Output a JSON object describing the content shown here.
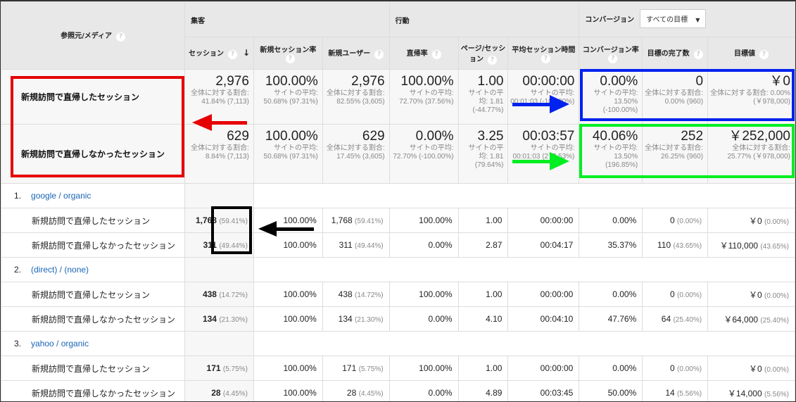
{
  "header": {
    "dimension": "参照元/メディア",
    "groups": {
      "acquisition": "集客",
      "behavior": "行動",
      "conversion": "コンバージョン"
    },
    "goal_select": "すべての目標",
    "columns": [
      "セッション",
      "新規セッション率",
      "新規ユーザー",
      "直帰率",
      "ページ/セッション",
      "平均セッション時間",
      "コンバージョン率",
      "目標の完了数",
      "目標値"
    ],
    "help": "?"
  },
  "summary": [
    {
      "label": "新規訪問で直帰したセッション",
      "cells": [
        {
          "v": "2,976",
          "s": "全体に対する割合: 41.84% (7,113)"
        },
        {
          "v": "100.00%",
          "s": "サイトの平均: 50.68% (97.31%)"
        },
        {
          "v": "2,976",
          "s": "全体に対する割合: 82.55% (3,605)"
        },
        {
          "v": "100.00%",
          "s": "サイトの平均: 72.70% (37.56%)"
        },
        {
          "v": "1.00",
          "s": "サイトの平均: 1.81 (-44.77%)"
        },
        {
          "v": "00:00:00",
          "s": "サイトの平均: 00:01:03 (-100.00%)"
        },
        {
          "v": "0.00%",
          "s": "サイトの平均: 13.50% (-100.00%)"
        },
        {
          "v": "0",
          "s": "全体に対する割合: 0.00% (960)"
        },
        {
          "v": "￥0",
          "s": "全体に対する割合: 0.00% (￥978,000)"
        }
      ]
    },
    {
      "label": "新規訪問で直帰しなかったセッション",
      "cells": [
        {
          "v": "629",
          "s": "全体に対する割合: 8.84% (7,113)"
        },
        {
          "v": "100.00%",
          "s": "サイトの平均: 50.68% (97.31%)"
        },
        {
          "v": "629",
          "s": "全体に対する割合: 17.45% (3,605)"
        },
        {
          "v": "0.00%",
          "s": "サイトの平均: 72.70% (-100.00%)"
        },
        {
          "v": "3.25",
          "s": "サイトの平均: 1.81 (79.64%)"
        },
        {
          "v": "00:03:57",
          "s": "サイトの平均: 00:01:03 (277.53%)"
        },
        {
          "v": "40.06%",
          "s": "サイトの平均: 13.50% (196.85%)"
        },
        {
          "v": "252",
          "s": "全体に対する割合: 26.25% (960)"
        },
        {
          "v": "￥252,000",
          "s": "全体に対する割合: 25.77% (￥978,000)"
        }
      ]
    }
  ],
  "groups": [
    {
      "index": "1.",
      "name": "google / organic",
      "rows": [
        {
          "label": "新規訪問で直帰したセッション",
          "sessions": "1,768",
          "sessions_pct": "(59.41%)",
          "new_rate": "100.00%",
          "new_users": "1,768",
          "new_users_pct": "(59.41%)",
          "bounce": "100.00%",
          "pages": "1.00",
          "duration": "00:00:00",
          "conv": "0.00%",
          "completions": "0",
          "completions_pct": "(0.00%)",
          "value": "￥0",
          "value_pct": "(0.00%)"
        },
        {
          "label": "新規訪問で直帰しなかったセッション",
          "sessions": "311",
          "sessions_pct": "(49.44%)",
          "new_rate": "100.00%",
          "new_users": "311",
          "new_users_pct": "(49.44%)",
          "bounce": "0.00%",
          "pages": "2.87",
          "duration": "00:04:17",
          "conv": "35.37%",
          "completions": "110",
          "completions_pct": "(43.65%)",
          "value": "￥110,000",
          "value_pct": "(43.65%)"
        }
      ]
    },
    {
      "index": "2.",
      "name": "(direct) / (none)",
      "rows": [
        {
          "label": "新規訪問で直帰したセッション",
          "sessions": "438",
          "sessions_pct": "(14.72%)",
          "new_rate": "100.00%",
          "new_users": "438",
          "new_users_pct": "(14.72%)",
          "bounce": "100.00%",
          "pages": "1.00",
          "duration": "00:00:00",
          "conv": "0.00%",
          "completions": "0",
          "completions_pct": "(0.00%)",
          "value": "￥0",
          "value_pct": "(0.00%)"
        },
        {
          "label": "新規訪問で直帰しなかったセッション",
          "sessions": "134",
          "sessions_pct": "(21.30%)",
          "new_rate": "100.00%",
          "new_users": "134",
          "new_users_pct": "(21.30%)",
          "bounce": "0.00%",
          "pages": "4.10",
          "duration": "00:04:10",
          "conv": "47.76%",
          "completions": "64",
          "completions_pct": "(25.40%)",
          "value": "￥64,000",
          "value_pct": "(25.40%)"
        }
      ]
    },
    {
      "index": "3.",
      "name": "yahoo / organic",
      "rows": [
        {
          "label": "新規訪問で直帰したセッション",
          "sessions": "171",
          "sessions_pct": "(5.75%)",
          "new_rate": "100.00%",
          "new_users": "171",
          "new_users_pct": "(5.75%)",
          "bounce": "100.00%",
          "pages": "1.00",
          "duration": "00:00:00",
          "conv": "0.00%",
          "completions": "0",
          "completions_pct": "(0.00%)",
          "value": "￥0",
          "value_pct": "(0.00%)"
        },
        {
          "label": "新規訪問で直帰しなかったセッション",
          "sessions": "28",
          "sessions_pct": "(4.45%)",
          "new_rate": "100.00%",
          "new_users": "28",
          "new_users_pct": "(4.45%)",
          "bounce": "0.00%",
          "pages": "4.89",
          "duration": "00:03:45",
          "conv": "50.00%",
          "completions": "14",
          "completions_pct": "(5.56%)",
          "value": "￥14,000",
          "value_pct": "(5.56%)"
        }
      ]
    }
  ],
  "annotations": {
    "red": "#e60000",
    "blue": "#0022ee",
    "green": "#00ee22",
    "black": "#000000"
  }
}
